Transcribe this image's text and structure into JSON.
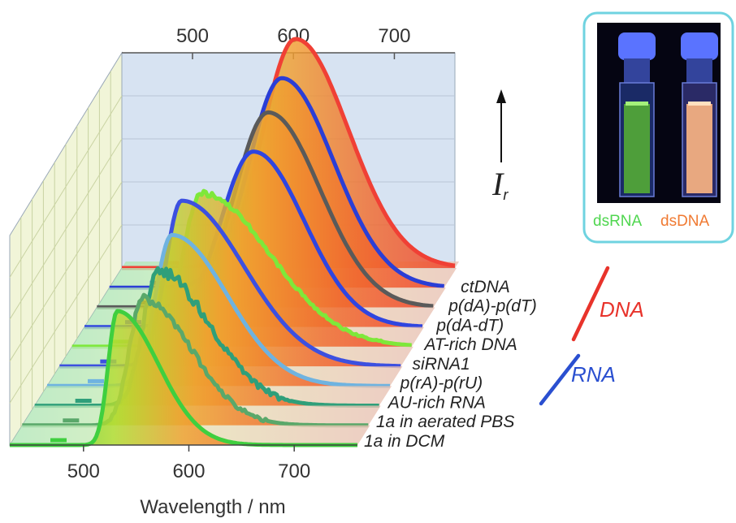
{
  "chart_data": {
    "type": "line",
    "xlabel": "Wavelength / nm",
    "ylabel": "I",
    "ylabel_sub": "r",
    "xlim": [
      430,
      760
    ],
    "x_ticks": [
      500,
      600,
      700
    ],
    "ylim": [
      0,
      1
    ],
    "grid": true,
    "series": [
      {
        "name": "1a in DCM",
        "color": "#3fcf3f",
        "peak": 532,
        "width_left": 12,
        "width_right": 55,
        "height": 0.55,
        "noise": 0.0
      },
      {
        "name": "1a in aerated PBS",
        "color": "#5aa86a",
        "peak": 545,
        "width_left": 18,
        "width_right": 65,
        "height": 0.52,
        "noise": 0.04
      },
      {
        "name": "AU-rich RNA",
        "color": "#2f9f7a",
        "peak": 548,
        "width_left": 20,
        "width_right": 70,
        "height": 0.55,
        "noise": 0.05
      },
      {
        "name": "p(rA)-p(rU)",
        "color": "#6fb3e0",
        "peak": 550,
        "width_left": 22,
        "width_right": 75,
        "height": 0.62,
        "noise": 0.0
      },
      {
        "name": "siRNA1",
        "color": "#3c50e0",
        "peak": 548,
        "width_left": 22,
        "width_right": 85,
        "height": 0.68,
        "noise": 0.0
      },
      {
        "name": "AT-rich DNA",
        "color": "#7ee83a",
        "peak": 555,
        "width_left": 24,
        "width_right": 95,
        "height": 0.63,
        "noise": 0.02
      },
      {
        "name": "p(dA-dT)",
        "color": "#2f45e0",
        "peak": 595,
        "width_left": 45,
        "width_right": 70,
        "height": 0.72,
        "noise": 0.0
      },
      {
        "name": "p(dA)-p(dT)",
        "color": "#5a5a5a",
        "peak": 598,
        "width_left": 45,
        "width_right": 72,
        "height": 0.8,
        "noise": 0.0
      },
      {
        "name": "ctDNA",
        "color": "#2a3ed6",
        "peak": 600,
        "width_left": 45,
        "width_right": 72,
        "height": 0.86,
        "noise": 0.0
      },
      {
        "name": "",
        "color": "#f04035",
        "peak": 602,
        "width_left": 45,
        "width_right": 74,
        "height": 0.94,
        "noise": 0.0
      }
    ],
    "groups": [
      {
        "label": "DNA",
        "color": "#e8332b"
      },
      {
        "label": "RNA",
        "color": "#2a4fd0"
      }
    ]
  },
  "inset": {
    "caption_left": "dsRNA",
    "caption_right": "dsDNA",
    "caption_left_color": "#4fd64f",
    "caption_right_color": "#f07a32",
    "frame_color": "#6fd3e0"
  }
}
